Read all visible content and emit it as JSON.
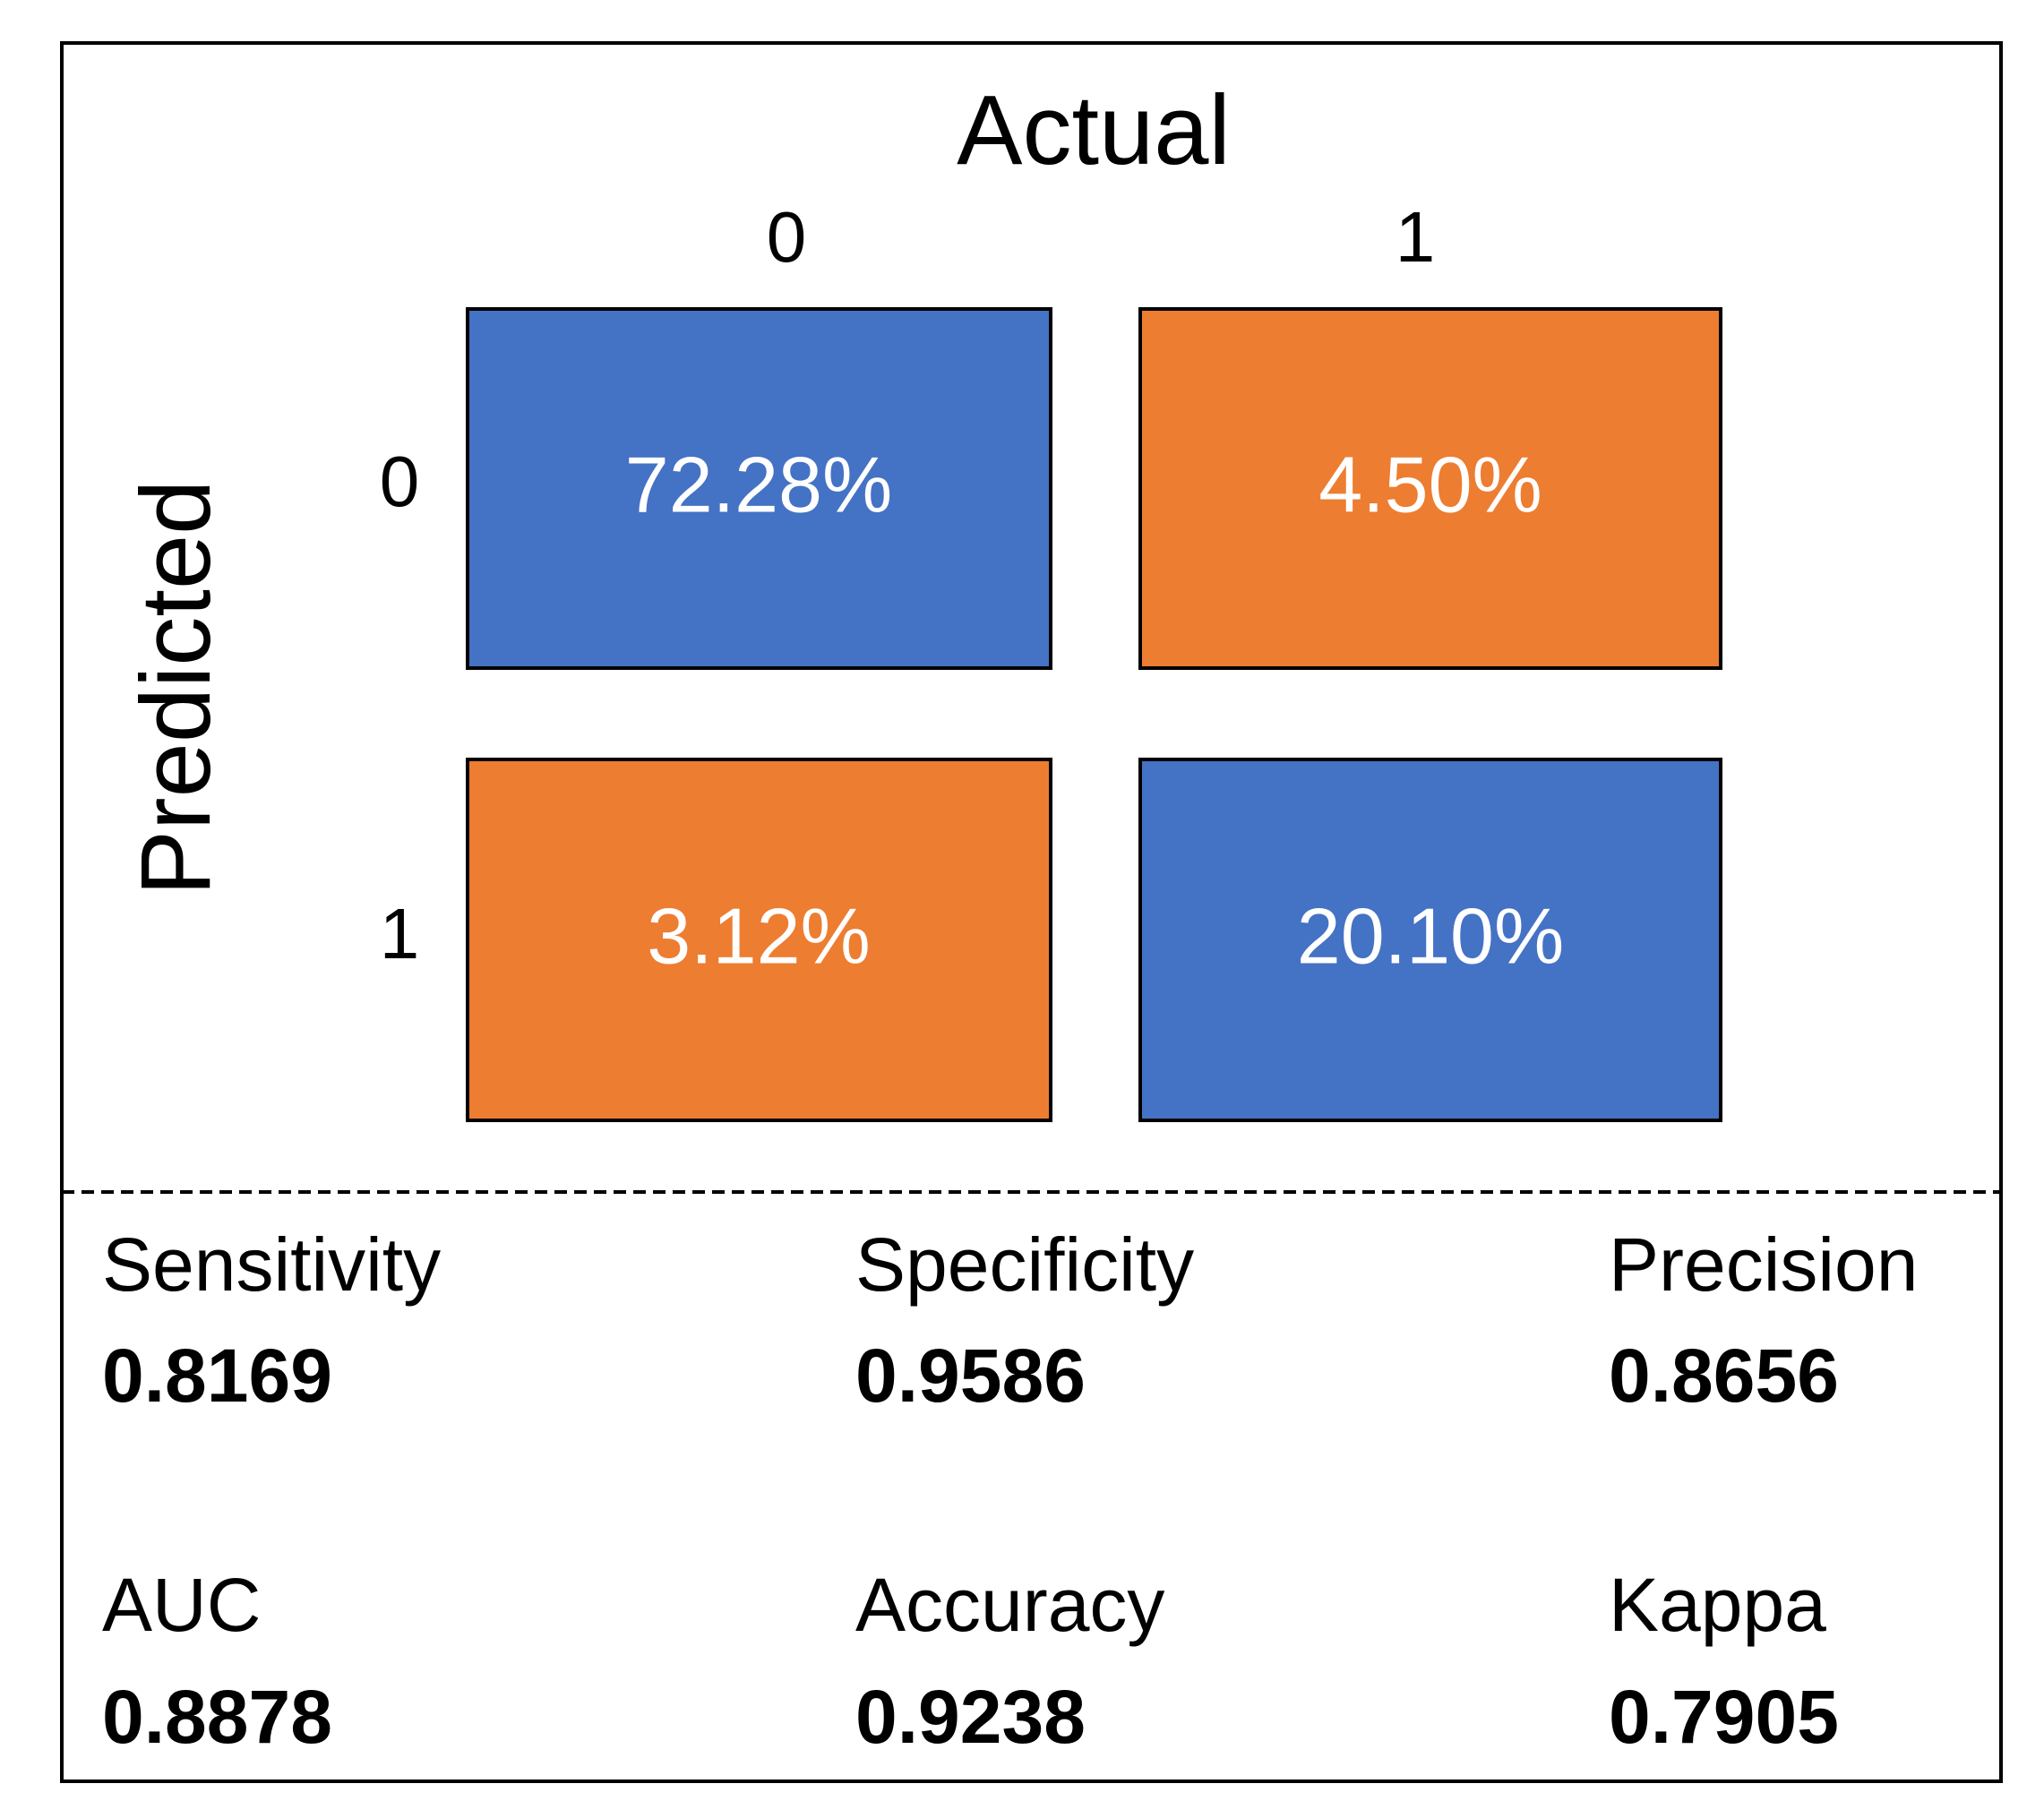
{
  "header": {
    "title": "Actual",
    "columns": [
      "0",
      "1"
    ]
  },
  "side": {
    "title": "Predicted",
    "rows": [
      "0",
      "1"
    ]
  },
  "matrix": {
    "cells": [
      [
        "72.28%",
        "4.50%"
      ],
      [
        "3.12%",
        "20.10%"
      ]
    ]
  },
  "metrics": [
    {
      "label": "Sensitivity",
      "value": "0.8169"
    },
    {
      "label": "Specificity",
      "value": "0.9586"
    },
    {
      "label": "Precision",
      "value": "0.8656"
    },
    {
      "label": "AUC",
      "value": "0.8878"
    },
    {
      "label": "Accuracy",
      "value": "0.9238"
    },
    {
      "label": "Kappa",
      "value": "0.7905"
    }
  ]
}
